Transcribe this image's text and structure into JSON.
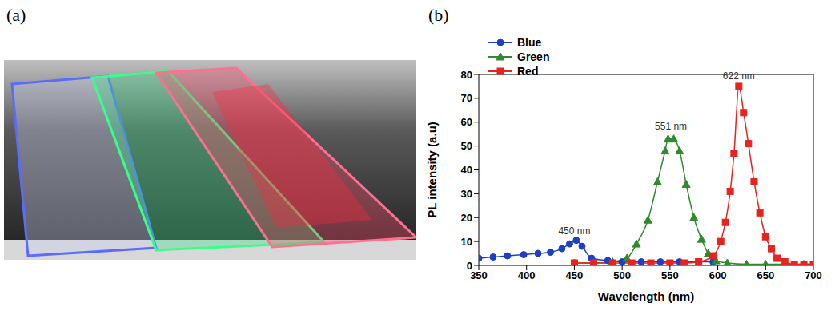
{
  "panel_labels": [
    "(a)",
    "(b)"
  ],
  "chart_data": {
    "type": "line",
    "x_label": "Wavelength (nm)",
    "y_label": "PL intensity (a.u)",
    "xlim": [
      350,
      700
    ],
    "xticks": [
      350,
      400,
      450,
      500,
      550,
      600,
      650,
      700
    ],
    "ylim": [
      0,
      80
    ],
    "yticks": [
      0,
      10,
      20,
      30,
      40,
      50,
      60,
      70,
      80
    ],
    "legend": "upper left",
    "grid": false,
    "series": [
      {
        "name": "Blue",
        "color": "#1c3fc8",
        "marker": "circle",
        "x": [
          350,
          365,
          380,
          397,
          412,
          425,
          437,
          445,
          452,
          458,
          468,
          485,
          500,
          520,
          540,
          560,
          580,
          595
        ],
        "values": [
          3,
          3.5,
          4,
          4.5,
          5,
          5.5,
          7,
          9,
          10.5,
          8,
          3,
          2,
          1.5,
          1.5,
          1.5,
          1.5,
          1.5,
          1.5
        ]
      },
      {
        "name": "Green",
        "color": "#2e8b2e",
        "marker": "triangle",
        "x": [
          450,
          470,
          490,
          505,
          515,
          527,
          537,
          545,
          548,
          554,
          560,
          567,
          575,
          583,
          590,
          598,
          610,
          630,
          650,
          670,
          690,
          700
        ],
        "values": [
          1,
          1,
          1.5,
          3,
          9,
          19,
          35,
          48,
          53,
          53,
          48,
          34,
          20,
          11,
          5,
          2,
          1,
          0.5,
          0.5,
          0.5,
          0.5,
          0.5
        ]
      },
      {
        "name": "Red",
        "color": "#e5231f",
        "marker": "square",
        "x": [
          450,
          470,
          490,
          510,
          530,
          550,
          565,
          580,
          595,
          603,
          608,
          613,
          617,
          622,
          627,
          632,
          638,
          644,
          650,
          656,
          662,
          670,
          680,
          690,
          700
        ],
        "values": [
          1,
          1,
          1,
          1,
          1,
          1,
          1,
          1.5,
          4,
          10,
          18,
          31,
          47,
          75,
          64,
          51,
          35,
          22,
          12,
          7,
          3,
          1.5,
          0.5,
          0.5,
          0.5
        ]
      }
    ],
    "annotations": [
      {
        "text": "450 nm",
        "x": 450,
        "y": 11
      },
      {
        "text": "551 nm",
        "x": 551,
        "y": 55
      },
      {
        "text": "622 nm",
        "x": 622,
        "y": 76
      }
    ]
  }
}
